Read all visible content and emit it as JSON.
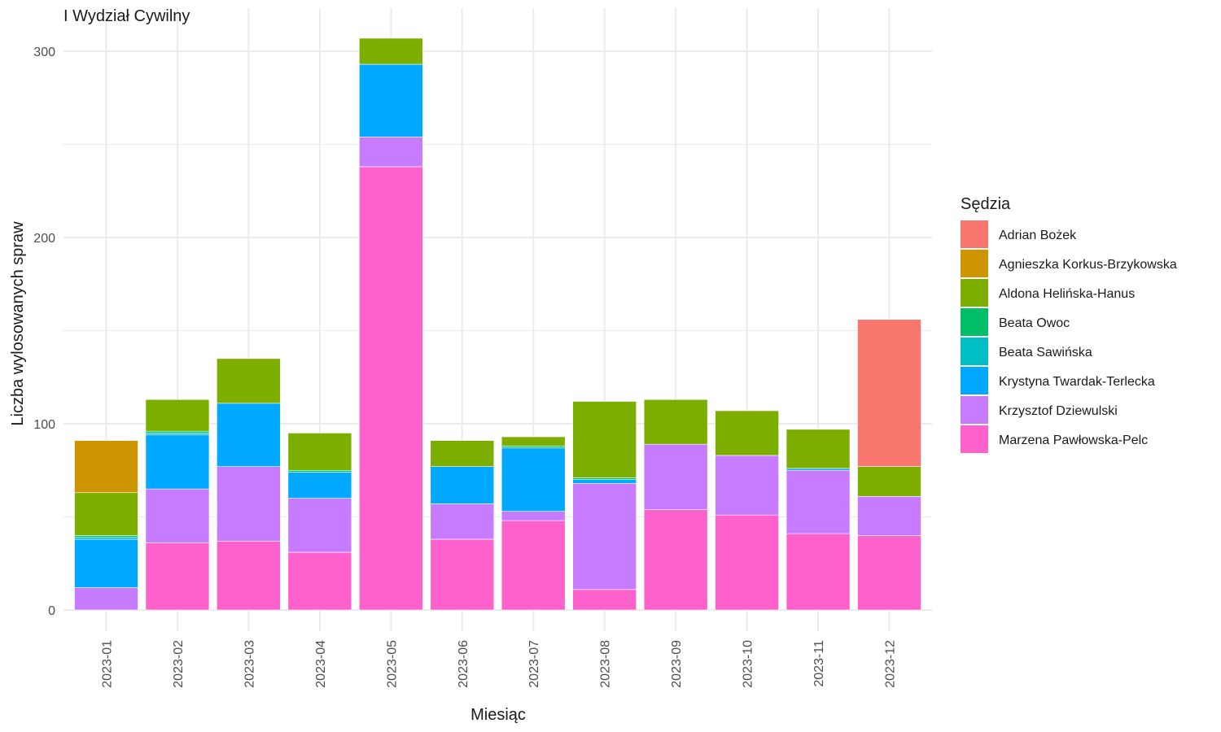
{
  "chart_data": {
    "type": "bar",
    "stacked": true,
    "title": "I Wydział Cywilny",
    "xlabel": "Miesiąc",
    "ylabel": "Liczba wylosowanych spraw",
    "ylim": [
      0,
      320
    ],
    "yticks": [
      0,
      100,
      200,
      300
    ],
    "grid": true,
    "legend": {
      "title": "Sędzia",
      "position": "right"
    },
    "categories": [
      "2023-01",
      "2023-02",
      "2023-03",
      "2023-04",
      "2023-05",
      "2023-06",
      "2023-07",
      "2023-08",
      "2023-09",
      "2023-10",
      "2023-11",
      "2023-12"
    ],
    "series": [
      {
        "name": "Marzena Pawłowska-Pelc",
        "color": "#FF61CC",
        "values": [
          0,
          36,
          37,
          31,
          238,
          38,
          48,
          11,
          54,
          51,
          41,
          40
        ]
      },
      {
        "name": "Krzysztof Dziewulski",
        "color": "#C77CFF",
        "values": [
          12,
          29,
          40,
          29,
          16,
          19,
          5,
          57,
          35,
          32,
          34,
          21
        ]
      },
      {
        "name": "Krystyna Twardak-Terlecka",
        "color": "#00A9FF",
        "values": [
          26,
          29,
          34,
          14,
          39,
          20,
          34,
          2,
          0,
          0,
          1,
          0
        ]
      },
      {
        "name": "Beata Sawińska",
        "color": "#00BFC4",
        "values": [
          1,
          1,
          0,
          0,
          0,
          0,
          0,
          0,
          0,
          0,
          0,
          0
        ]
      },
      {
        "name": "Beata Owoc",
        "color": "#00BE67",
        "values": [
          1,
          1,
          0,
          1,
          0,
          0,
          1,
          1,
          0,
          0,
          0,
          0
        ]
      },
      {
        "name": "Aldona Helińska-Hanus",
        "color": "#7CAE00",
        "values": [
          23,
          17,
          24,
          20,
          14,
          14,
          5,
          41,
          24,
          24,
          21,
          16
        ]
      },
      {
        "name": "Agnieszka Korkus-Brzykowska",
        "color": "#CD9600",
        "values": [
          28,
          0,
          0,
          0,
          0,
          0,
          0,
          0,
          0,
          0,
          0,
          0
        ]
      },
      {
        "name": "Adrian Bożek",
        "color": "#F8766D",
        "values": [
          0,
          0,
          0,
          0,
          0,
          0,
          0,
          0,
          0,
          0,
          0,
          79
        ]
      }
    ],
    "legend_order": [
      "Adrian Bożek",
      "Agnieszka Korkus-Brzykowska",
      "Aldona Helińska-Hanus",
      "Beata Owoc",
      "Beata Sawińska",
      "Krystyna Twardak-Terlecka",
      "Krzysztof Dziewulski",
      "Marzena Pawłowska-Pelc"
    ]
  }
}
